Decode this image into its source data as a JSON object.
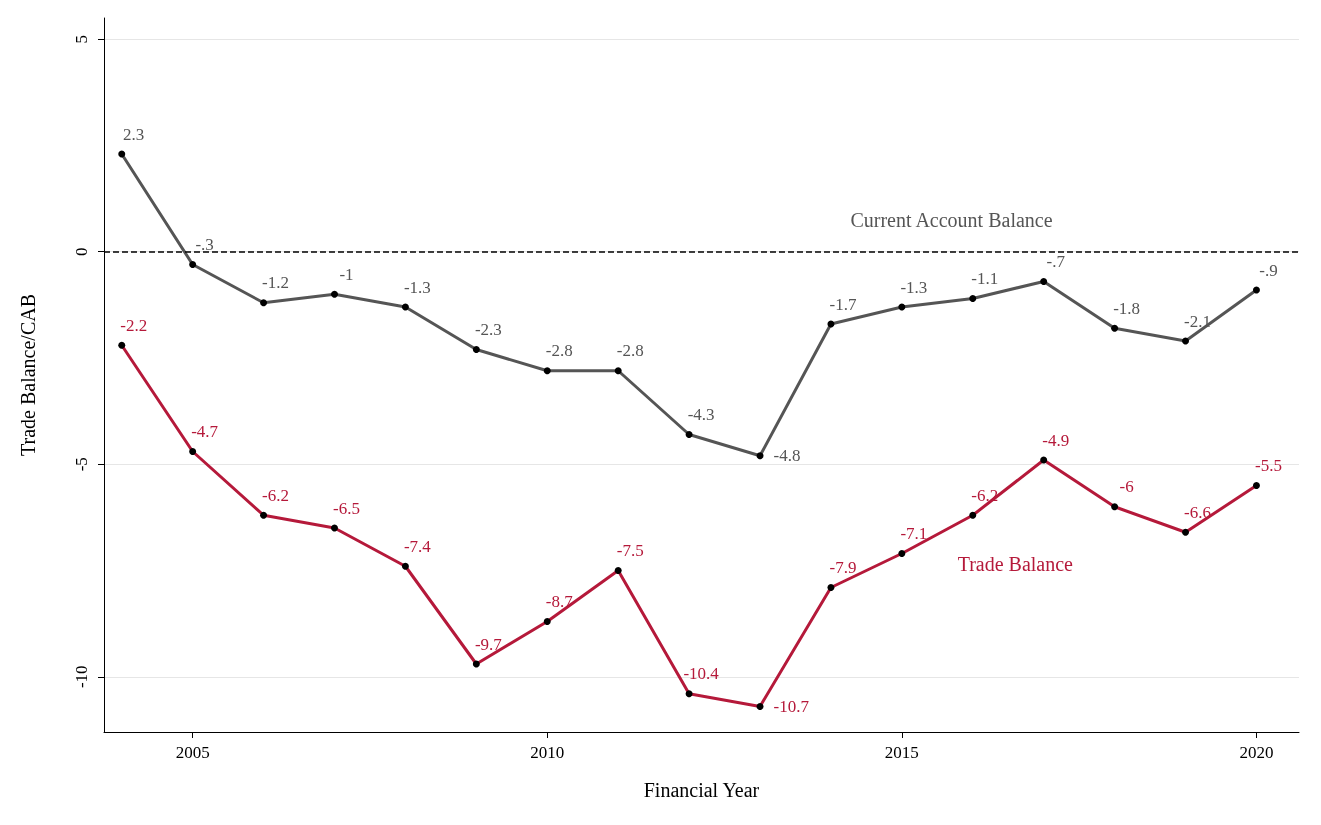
{
  "chart_data": {
    "type": "line",
    "xlabel": "Financial Year",
    "ylabel": "Trade Balance/CAB",
    "x": [
      2004,
      2005,
      2006,
      2007,
      2008,
      2009,
      2010,
      2011,
      2012,
      2013,
      2014,
      2015,
      2016,
      2017,
      2018,
      2019,
      2020
    ],
    "series": [
      {
        "name": "Current Account Balance",
        "color": "#555555",
        "values": [
          2.3,
          -0.3,
          -1.2,
          -1,
          -1.3,
          -2.3,
          -2.8,
          -2.8,
          -4.3,
          -4.8,
          -1.7,
          -1.3,
          -1.1,
          -0.7,
          -1.8,
          -2.1,
          -0.9
        ],
        "value_labels": [
          "2.3",
          "-.3",
          "-1.2",
          "-1",
          "-1.3",
          "-2.3",
          "-2.8",
          "-2.8",
          "-4.3",
          "-4.8",
          "-1.7",
          "-1.3",
          "-1.1",
          "-.7",
          "-1.8",
          "-2.1",
          "-.9"
        ]
      },
      {
        "name": "Trade Balance",
        "color": "#b5193a",
        "values": [
          -2.2,
          -4.7,
          -6.2,
          -6.5,
          -7.4,
          -9.7,
          -8.7,
          -7.5,
          -10.4,
          -10.7,
          -7.9,
          -7.1,
          -6.2,
          -4.9,
          -6,
          -6.6,
          -5.5
        ],
        "value_labels": [
          "-2.2",
          "-4.7",
          "-6.2",
          "-6.5",
          "-7.4",
          "-9.7",
          "-8.7",
          "-7.5",
          "-10.4",
          "-10.7",
          "-7.9",
          "-7.1",
          "-6.2",
          "-4.9",
          "-6",
          "-6.6",
          "-5.5"
        ]
      }
    ],
    "xlim": [
      2003.75,
      2020.6
    ],
    "xticks": [
      2005,
      2010,
      2015,
      2020
    ],
    "ylim": [
      -11.3,
      5.5
    ],
    "yticks": [
      -10,
      -5,
      0,
      5
    ],
    "ref_lines": [
      {
        "axis": "y",
        "value": 0,
        "color": "#000000",
        "line_style": "dashed"
      }
    ],
    "grid": "y",
    "legend": false,
    "marker": "circle",
    "line_style": "solid"
  }
}
